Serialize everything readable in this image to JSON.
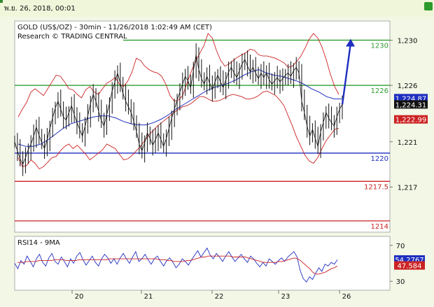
{
  "header": {
    "date": "พ.ย. 26, 2018, 00:01"
  },
  "chart_data": {
    "type": "line",
    "instrument": "GOLD (US$/OZ)",
    "title": "GOLD (US$/OZ) - 30min - 11/26/2018 1:02:49 AM (CET)",
    "subtitle": "Research © TRADING CENTRAL",
    "price_ticks": [
      "1,230",
      "1,226",
      "1,221",
      "1,217"
    ],
    "price_tick_values": [
      1230,
      1226,
      1221,
      1217
    ],
    "ylim": [
      1213,
      1231.7
    ],
    "x_labels": [
      "20",
      "21",
      "22",
      "23",
      "26"
    ],
    "levels": [
      {
        "value": 1230,
        "label": "1230",
        "color": "#2e9e2e"
      },
      {
        "value": 1226,
        "label": "1226",
        "color": "#2e9e2e"
      },
      {
        "value": 1220,
        "label": "1220",
        "color": "#1f2fbf"
      },
      {
        "value": 1217.5,
        "label": "1217.5",
        "color": "#cc2222"
      },
      {
        "value": 1214,
        "label": "1214",
        "color": "#cc2222"
      }
    ],
    "tags": [
      {
        "label": "1,224.87",
        "value": 1224.87,
        "bg": "#1f2fbf",
        "fg": "#ffffff"
      },
      {
        "label": "1,224.31",
        "value": 1224.31,
        "bg": "#111111",
        "fg": "#ffffff"
      },
      {
        "label": "1,222.99",
        "value": 1222.99,
        "bg": "#cc2222",
        "fg": "#ffffff"
      }
    ],
    "price_closes": [
      1221,
      1220.2,
      1219.5,
      1219,
      1219.6,
      1220.3,
      1220.8,
      1221.5,
      1222.3,
      1221.6,
      1220.9,
      1220.4,
      1221.2,
      1222.2,
      1223.1,
      1224,
      1224.6,
      1223.9,
      1223.2,
      1222.9,
      1223.6,
      1224.2,
      1223.4,
      1222.7,
      1222.1,
      1221.5,
      1222.4,
      1223.3,
      1224.4,
      1225.2,
      1224.6,
      1223.7,
      1222.9,
      1222.4,
      1223.4,
      1224.4,
      1225.5,
      1226.3,
      1227.1,
      1226.2,
      1225.3,
      1224.6,
      1224.1,
      1223.6,
      1222.8,
      1221.9,
      1220.8,
      1220.2,
      1220.9,
      1221.8,
      1221.3,
      1220.7,
      1221.2,
      1221.8,
      1221.2,
      1220.6,
      1221.3,
      1222.2,
      1223.1,
      1223.9,
      1224.7,
      1225.4,
      1226.1,
      1226.8,
      1226.4,
      1225.8,
      1227.3,
      1228.7,
      1227.4,
      1226.6,
      1226.1,
      1226.8,
      1226.2,
      1225.6,
      1226.3,
      1226.9,
      1226.3,
      1225.8,
      1226.5,
      1227.2,
      1227.6,
      1227.1,
      1226.7,
      1227.3,
      1227.9,
      1228.3,
      1227.7,
      1227.2,
      1227.6,
      1227.1,
      1226.6,
      1227.1,
      1226.7,
      1227.1,
      1226.5,
      1226.1,
      1226.4,
      1226.7,
      1226.3,
      1226.6,
      1226.9,
      1227.1,
      1226.8,
      1227.3,
      1227.6,
      1227.1,
      1224.6,
      1223.6,
      1222.4,
      1221.5,
      1222.1,
      1221.3,
      1220.6,
      1221.9,
      1222.7,
      1223.6,
      1223.1,
      1222.7,
      1222.4,
      1223.2,
      1223.9,
      1224.3
    ],
    "bollinger_upper": [
      1223.2,
      1223.9,
      1224.5,
      1225.4,
      1225.7,
      1225.4,
      1225.1,
      1225.7,
      1226.3,
      1226.9,
      1226.8,
      1226.3,
      1225.7,
      1225.6,
      1225.2,
      1224.9,
      1225.6,
      1225.9,
      1225.4,
      1225.2,
      1225.7,
      1226.2,
      1226.4,
      1226.7,
      1226.1,
      1225.9,
      1226.4,
      1227.2,
      1228.4,
      1228.2,
      1227.7,
      1227.4,
      1227.2,
      1227.1,
      1226.8,
      1226.1,
      1225.1,
      1224.6,
      1224.7,
      1225.1,
      1226.2,
      1227.2,
      1228.1,
      1228.8,
      1229.5,
      1230.6,
      1230.2,
      1229.1,
      1228.2,
      1227.7,
      1227.9,
      1228.2,
      1228.5,
      1228.7,
      1228.9,
      1229.2,
      1229.1,
      1228.7,
      1228.6,
      1228.6,
      1228.5,
      1228.4,
      1228.2,
      1228.0,
      1227.6,
      1227.7,
      1228.1,
      1228.6,
      1229.3,
      1230.1,
      1230.6,
      1230.2,
      1229.4,
      1228.3,
      1227.0,
      1225.9,
      1225.2
    ],
    "bollinger_lower": [
      1219.6,
      1218.8,
      1218.9,
      1219.4,
      1219.1,
      1218.6,
      1218.8,
      1219.2,
      1219.6,
      1219.7,
      1220.2,
      1220.6,
      1220.8,
      1220.4,
      1220.7,
      1220.3,
      1219.9,
      1219.4,
      1219.7,
      1220.0,
      1220.3,
      1220.8,
      1220.6,
      1220.4,
      1219.9,
      1219.4,
      1219.5,
      1219.8,
      1220.2,
      1220.6,
      1221.1,
      1221.6,
      1222.0,
      1222.4,
      1222.7,
      1223.0,
      1223.3,
      1223.6,
      1223.9,
      1224.1,
      1224.2,
      1224.4,
      1224.7,
      1225.0,
      1225.0,
      1224.8,
      1224.6,
      1224.6,
      1224.7,
      1224.9,
      1225.1,
      1225.2,
      1225.1,
      1225.0,
      1224.8,
      1224.8,
      1224.9,
      1225.1,
      1225.4,
      1225.5,
      1225.3,
      1225.1,
      1224.7,
      1224.2,
      1223.3,
      1222.4,
      1221.4,
      1220.6,
      1219.8,
      1219.3,
      1219.1,
      1219.6,
      1220.4,
      1221.1,
      1221.6,
      1222.1,
      1222.2
    ],
    "sma": [
      1220.8,
      1220.6,
      1220.6,
      1220.8,
      1221.2,
      1221.7,
      1222.2,
      1222.6,
      1222.8,
      1223.0,
      1223.2,
      1223.3,
      1223.3,
      1223.1,
      1222.8,
      1222.6,
      1222.5,
      1222.5,
      1222.7,
      1223.0,
      1223.4,
      1223.9,
      1224.3,
      1224.7,
      1225.1,
      1225.5,
      1225.8,
      1226.0,
      1226.2,
      1226.5,
      1226.9,
      1227.2,
      1227.4,
      1227.1,
      1226.9,
      1226.8,
      1226.6,
      1226.4,
      1226.1,
      1225.7,
      1225.4,
      1225.0,
      1224.8,
      1224.8
    ],
    "projection": [
      1224.3,
      1230
    ],
    "rsi_title": "RSI14 - 9MA",
    "rsi_ticks": [
      "70",
      "30"
    ],
    "rsi_tick_values": [
      70,
      30
    ],
    "rsi_range": [
      20,
      80
    ],
    "rsi_tags": [
      {
        "label": "54.2767",
        "value": 54.2767,
        "bg": "#1f2fbf",
        "fg": "#ffffff"
      },
      {
        "label": "47.584",
        "value": 47.584,
        "bg": "#cc2222",
        "fg": "#ffffff"
      }
    ],
    "rsi": [
      50,
      44,
      53,
      49,
      58,
      52,
      46,
      55,
      60,
      51,
      47,
      56,
      61,
      52,
      49,
      57,
      52,
      46,
      55,
      50,
      58,
      62,
      54,
      48,
      53,
      58,
      51,
      47,
      55,
      60,
      56,
      50,
      55,
      49,
      56,
      61,
      55,
      50,
      57,
      63,
      52,
      55,
      60,
      54,
      49,
      55,
      58,
      52,
      47,
      53,
      56,
      51,
      45,
      49,
      55,
      52,
      48,
      54,
      59,
      64,
      57,
      62,
      67,
      59,
      55,
      61,
      57,
      52,
      58,
      63,
      57,
      52,
      56,
      60,
      55,
      51,
      58,
      55,
      50,
      46,
      51,
      47,
      55,
      52,
      49,
      53,
      56,
      52,
      57,
      60,
      63,
      57,
      42,
      33,
      29,
      35,
      32,
      39,
      45,
      41,
      49,
      47,
      51,
      49,
      54
    ],
    "rsi_ma": [
      51,
      51,
      51,
      52,
      52,
      52,
      52,
      53,
      53,
      53,
      53,
      53,
      54,
      54,
      54,
      54,
      53,
      53,
      53,
      53,
      54,
      54,
      54,
      54,
      54,
      54,
      54,
      54,
      54,
      54,
      55,
      55,
      55,
      55,
      55,
      55,
      55,
      55,
      55,
      55,
      55,
      55,
      55,
      55,
      55,
      55,
      54,
      54,
      54,
      53,
      53,
      52,
      52,
      52,
      52,
      53,
      53,
      54,
      55,
      56,
      57,
      57,
      58,
      58,
      58,
      58,
      58,
      58,
      58,
      58,
      57,
      57,
      57,
      57,
      57,
      56,
      55,
      54,
      53,
      52,
      51,
      51,
      51,
      51,
      51,
      52,
      52,
      53,
      54,
      55,
      56,
      55,
      53,
      50,
      47,
      44,
      40,
      38,
      38,
      39,
      40,
      42,
      44,
      45,
      47
    ]
  }
}
